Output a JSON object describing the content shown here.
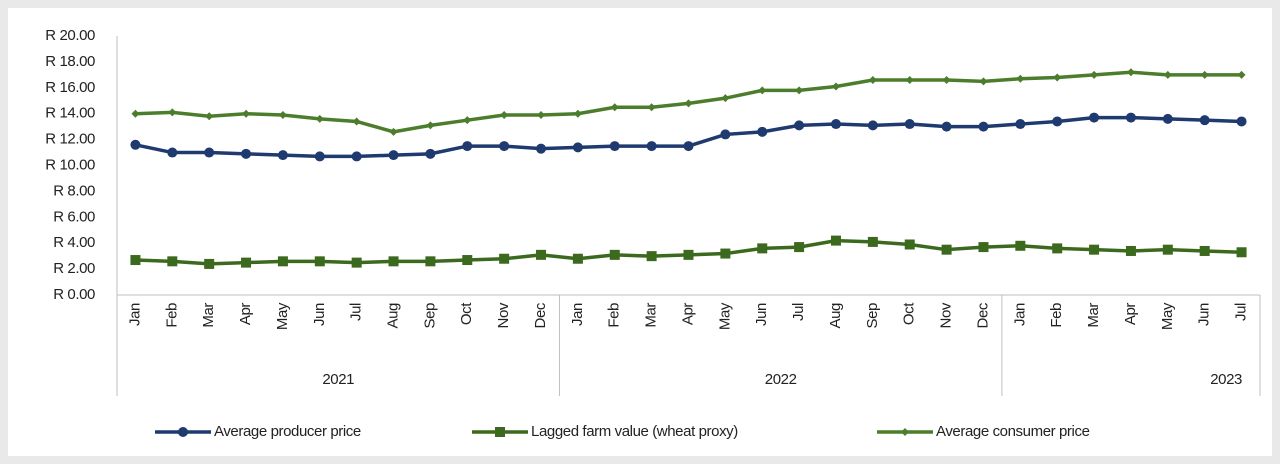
{
  "chart_data": {
    "type": "line",
    "groups": [
      {
        "label": "2021",
        "categories": [
          "Jan",
          "Feb",
          "Mar",
          "Apr",
          "May",
          "Jun",
          "Jul",
          "Aug",
          "Sep",
          "Oct",
          "Nov",
          "Dec"
        ]
      },
      {
        "label": "2022",
        "categories": [
          "Jan",
          "Feb",
          "Mar",
          "Apr",
          "May",
          "Jun",
          "Jul",
          "Aug",
          "Sep",
          "Oct",
          "Nov",
          "Dec"
        ]
      },
      {
        "label": "2023",
        "categories": [
          "Jan",
          "Feb",
          "Mar",
          "Apr",
          "May",
          "Jun",
          "Jul"
        ]
      }
    ],
    "series": [
      {
        "name": "Average producer price",
        "color": "#1f3a6e",
        "marker": "circle",
        "values": [
          11.6,
          11.0,
          11.0,
          10.9,
          10.8,
          10.7,
          10.7,
          10.8,
          10.9,
          11.5,
          11.5,
          11.3,
          11.4,
          11.5,
          11.5,
          11.5,
          12.4,
          12.6,
          13.1,
          13.2,
          13.1,
          13.2,
          13.0,
          13.0,
          13.2,
          13.4,
          13.7,
          13.7,
          13.6,
          13.5,
          13.4
        ]
      },
      {
        "name": "Lagged farm value (wheat proxy)",
        "color": "#3b6a1f",
        "marker": "square",
        "values": [
          2.7,
          2.6,
          2.4,
          2.5,
          2.6,
          2.6,
          2.5,
          2.6,
          2.6,
          2.7,
          2.8,
          3.1,
          2.8,
          3.1,
          3.0,
          3.1,
          3.2,
          3.6,
          3.7,
          4.2,
          4.1,
          3.9,
          3.5,
          3.7,
          3.8,
          3.6,
          3.5,
          3.4,
          3.5,
          3.4,
          3.3
        ]
      },
      {
        "name": "Average consumer price",
        "color": "#4c7d2c",
        "marker": "diamond",
        "values": [
          14.0,
          14.1,
          13.8,
          14.0,
          13.9,
          13.6,
          13.4,
          12.6,
          13.1,
          13.5,
          13.9,
          13.9,
          14.0,
          14.5,
          14.5,
          14.8,
          15.2,
          15.8,
          15.8,
          16.1,
          16.6,
          16.6,
          16.6,
          16.5,
          16.7,
          16.8,
          17.0,
          17.2,
          17.0,
          17.0,
          17.0
        ]
      }
    ],
    "ylim": [
      0,
      20
    ],
    "yticks": [
      {
        "value": 0,
        "label": "R 0.00"
      },
      {
        "value": 2,
        "label": "R 2.00"
      },
      {
        "value": 4,
        "label": "R 4.00"
      },
      {
        "value": 6,
        "label": "R 6.00"
      },
      {
        "value": 8,
        "label": "R 8.00"
      },
      {
        "value": 10,
        "label": "R 10.00"
      },
      {
        "value": 12,
        "label": "R 12.00"
      },
      {
        "value": 14,
        "label": "R 14.00"
      },
      {
        "value": 16,
        "label": "R 16.00"
      },
      {
        "value": 18,
        "label": "R 18.00"
      },
      {
        "value": 20,
        "label": "R 20.00"
      }
    ],
    "grid": false,
    "legend": "bottom"
  }
}
